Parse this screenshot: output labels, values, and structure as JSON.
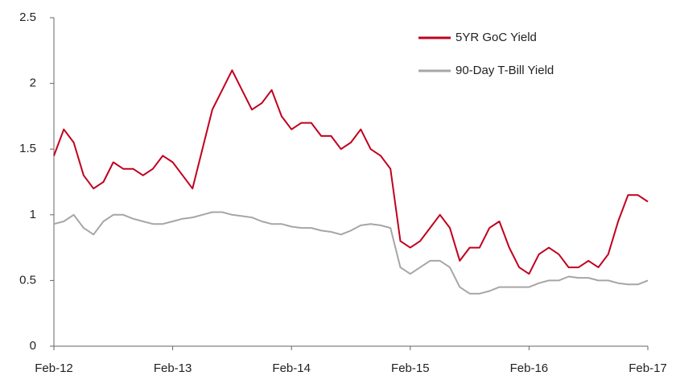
{
  "chart_data": {
    "type": "line",
    "x": [
      "2012-02",
      "2012-03",
      "2012-04",
      "2012-05",
      "2012-06",
      "2012-07",
      "2012-08",
      "2012-09",
      "2012-10",
      "2012-11",
      "2012-12",
      "2013-01",
      "2013-02",
      "2013-03",
      "2013-04",
      "2013-05",
      "2013-06",
      "2013-07",
      "2013-08",
      "2013-09",
      "2013-10",
      "2013-11",
      "2013-12",
      "2014-01",
      "2014-02",
      "2014-03",
      "2014-04",
      "2014-05",
      "2014-06",
      "2014-07",
      "2014-08",
      "2014-09",
      "2014-10",
      "2014-11",
      "2014-12",
      "2015-01",
      "2015-02",
      "2015-03",
      "2015-04",
      "2015-05",
      "2015-06",
      "2015-07",
      "2015-08",
      "2015-09",
      "2015-10",
      "2015-11",
      "2015-12",
      "2016-01",
      "2016-02",
      "2016-03",
      "2016-04",
      "2016-05",
      "2016-06",
      "2016-07",
      "2016-08",
      "2016-09",
      "2016-10",
      "2016-11",
      "2016-12",
      "2017-01",
      "2017-02"
    ],
    "series": [
      {
        "name": "5YR GoC Yield",
        "color": "#c0001e",
        "values": [
          1.45,
          1.65,
          1.55,
          1.3,
          1.2,
          1.25,
          1.4,
          1.35,
          1.35,
          1.3,
          1.35,
          1.45,
          1.4,
          1.3,
          1.2,
          1.5,
          1.8,
          1.95,
          2.1,
          1.95,
          1.8,
          1.85,
          1.95,
          1.75,
          1.65,
          1.7,
          1.7,
          1.6,
          1.6,
          1.5,
          1.55,
          1.65,
          1.5,
          1.45,
          1.35,
          0.8,
          0.75,
          0.8,
          0.9,
          1.0,
          0.9,
          0.65,
          0.75,
          0.75,
          0.9,
          0.95,
          0.75,
          0.6,
          0.55,
          0.7,
          0.75,
          0.7,
          0.6,
          0.6,
          0.65,
          0.6,
          0.7,
          0.95,
          1.15,
          1.15,
          1.1
        ]
      },
      {
        "name": "90-Day T-Bill Yield",
        "color": "#a6a6a6",
        "values": [
          0.93,
          0.95,
          1.0,
          0.9,
          0.85,
          0.95,
          1.0,
          1.0,
          0.97,
          0.95,
          0.93,
          0.93,
          0.95,
          0.97,
          0.98,
          1.0,
          1.02,
          1.02,
          1.0,
          0.99,
          0.98,
          0.95,
          0.93,
          0.93,
          0.91,
          0.9,
          0.9,
          0.88,
          0.87,
          0.85,
          0.88,
          0.92,
          0.93,
          0.92,
          0.9,
          0.6,
          0.55,
          0.6,
          0.65,
          0.65,
          0.6,
          0.45,
          0.4,
          0.4,
          0.42,
          0.45,
          0.45,
          0.45,
          0.45,
          0.48,
          0.5,
          0.5,
          0.53,
          0.52,
          0.52,
          0.5,
          0.5,
          0.48,
          0.47,
          0.47,
          0.5
        ]
      }
    ],
    "xlim": [
      "2012-02",
      "2017-02"
    ],
    "xticks": [
      {
        "value": "2012-02",
        "label": "Feb-12"
      },
      {
        "value": "2013-02",
        "label": "Feb-13"
      },
      {
        "value": "2014-02",
        "label": "Feb-14"
      },
      {
        "value": "2015-02",
        "label": "Feb-15"
      },
      {
        "value": "2016-02",
        "label": "Feb-16"
      },
      {
        "value": "2017-02",
        "label": "Feb-17"
      }
    ],
    "ylim": [
      0,
      2.5
    ],
    "yticks": [
      0,
      0.5,
      1,
      1.5,
      2,
      2.5
    ],
    "legend": "upper right"
  }
}
